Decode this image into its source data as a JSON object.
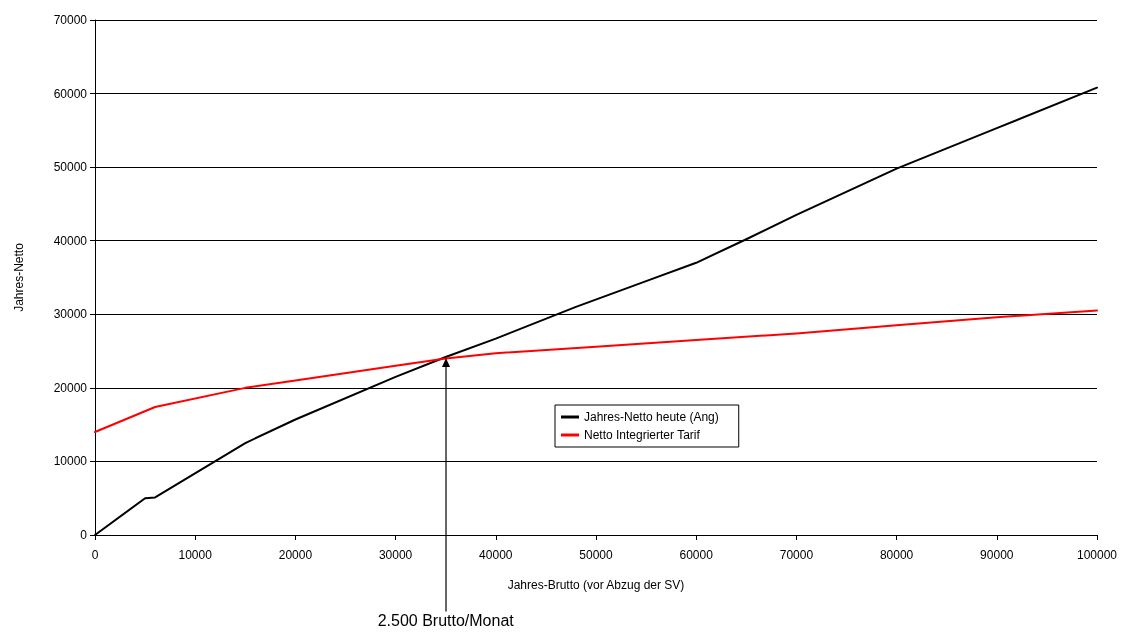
{
  "chart_data": {
    "type": "line",
    "xlabel": "Jahres-Brutto (vor Abzug der SV)",
    "ylabel": "Jahres-Netto",
    "xlim": [
      0,
      100000
    ],
    "xticks": [
      0,
      10000,
      20000,
      30000,
      40000,
      50000,
      60000,
      70000,
      80000,
      90000,
      100000
    ],
    "ylim": [
      0,
      70000
    ],
    "yticks": [
      0,
      10000,
      20000,
      30000,
      40000,
      50000,
      60000,
      70000
    ],
    "grid": "y",
    "legend": "bottom",
    "marker": "none",
    "line_style": "solid",
    "series": [
      {
        "name": "Jahres-Netto heute (Ang)",
        "color": "#000000",
        "x": [
          0,
          5000,
          6000,
          15000,
          20000,
          30000,
          35000,
          40000,
          48000,
          55000,
          60000,
          65000,
          70000,
          80000,
          90000,
          100000
        ],
        "values": [
          0,
          5000,
          5100,
          12500,
          15700,
          21500,
          24200,
          26700,
          31000,
          34500,
          37000,
          40200,
          43500,
          49800,
          55300,
          60800
        ]
      },
      {
        "name": "Netto Integrierter Tarif",
        "color": "#ff0000",
        "x": [
          0,
          6000,
          15000,
          20000,
          30000,
          35000,
          40000,
          50000,
          60000,
          70000,
          80000,
          90000,
          100000
        ],
        "values": [
          14000,
          17400,
          20000,
          21000,
          23000,
          24000,
          24700,
          25600,
          26500,
          27400,
          28500,
          29600,
          30500
        ]
      }
    ],
    "annotations": [
      {
        "text": "2.500 Brutto/Monat",
        "x": 35000,
        "y": 24000
      }
    ]
  }
}
